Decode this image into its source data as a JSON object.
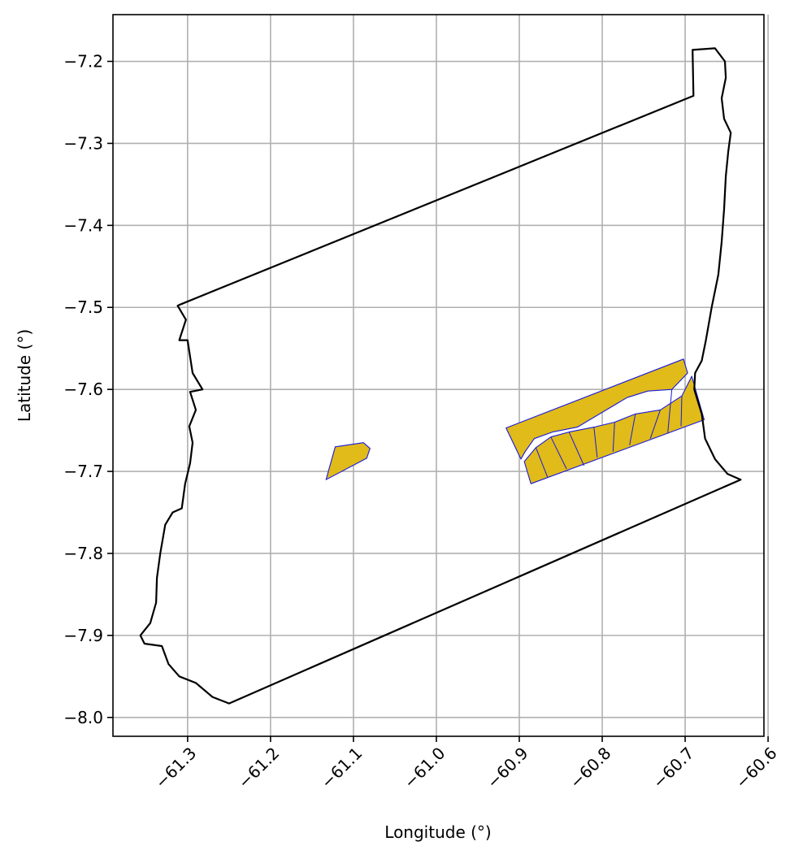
{
  "chart_data": {
    "type": "map",
    "xlabel": "Longitude (°)",
    "ylabel": "Latitude (°)",
    "xlim": [
      -61.39,
      -60.605
    ],
    "ylim": [
      -8.023,
      -7.143
    ],
    "x_ticks": [
      -61.3,
      -61.2,
      -61.1,
      -61.0,
      -60.9,
      -60.8,
      -60.7,
      -60.6
    ],
    "x_tick_labels": [
      "−61.3",
      "−61.2",
      "−61.1",
      "−61.0",
      "−60.9",
      "−60.8",
      "−60.7",
      "−60.6"
    ],
    "y_ticks": [
      -7.2,
      -7.3,
      -7.4,
      -7.5,
      -7.6,
      -7.7,
      -7.8,
      -7.9,
      -8.0
    ],
    "y_tick_labels": [
      "−7.2",
      "−7.3",
      "−7.4",
      "−7.5",
      "−7.6",
      "−7.7",
      "−7.8",
      "−7.9",
      "−8.0"
    ],
    "grid": true,
    "colors": {
      "boundary": "#000000",
      "parcel_fill": "#e0bb1a",
      "parcel_edge": "#1a1adc",
      "grid": "#b0b0b0"
    },
    "boundary": [
      [
        -61.31,
        -7.497
      ],
      [
        -60.69,
        -7.242
      ],
      [
        -60.691,
        -7.186
      ],
      [
        -60.664,
        -7.184
      ],
      [
        -60.652,
        -7.2
      ],
      [
        -60.651,
        -7.22
      ],
      [
        -60.656,
        -7.245
      ],
      [
        -60.653,
        -7.27
      ],
      [
        -60.645,
        -7.287
      ],
      [
        -60.648,
        -7.31
      ],
      [
        -60.651,
        -7.34
      ],
      [
        -60.653,
        -7.38
      ],
      [
        -60.656,
        -7.42
      ],
      [
        -60.66,
        -7.46
      ],
      [
        -60.668,
        -7.5
      ],
      [
        -60.675,
        -7.54
      ],
      [
        -60.68,
        -7.565
      ],
      [
        -60.688,
        -7.58
      ],
      [
        -60.689,
        -7.6
      ],
      [
        -60.68,
        -7.63
      ],
      [
        -60.676,
        -7.66
      ],
      [
        -60.664,
        -7.685
      ],
      [
        -60.649,
        -7.703
      ],
      [
        -60.633,
        -7.71
      ],
      [
        -61.25,
        -7.983
      ],
      [
        -61.27,
        -7.975
      ],
      [
        -61.29,
        -7.958
      ],
      [
        -61.31,
        -7.95
      ],
      [
        -61.323,
        -7.935
      ],
      [
        -61.331,
        -7.913
      ],
      [
        -61.352,
        -7.91
      ],
      [
        -61.357,
        -7.9
      ],
      [
        -61.345,
        -7.885
      ],
      [
        -61.338,
        -7.86
      ],
      [
        -61.337,
        -7.83
      ],
      [
        -61.333,
        -7.8
      ],
      [
        -61.327,
        -7.765
      ],
      [
        -61.318,
        -7.75
      ],
      [
        -61.307,
        -7.745
      ],
      [
        -61.303,
        -7.715
      ],
      [
        -61.297,
        -7.69
      ],
      [
        -61.294,
        -7.665
      ],
      [
        -61.298,
        -7.645
      ],
      [
        -61.29,
        -7.625
      ],
      [
        -61.297,
        -7.603
      ],
      [
        -61.282,
        -7.6
      ],
      [
        -61.294,
        -7.58
      ],
      [
        -61.297,
        -7.56
      ],
      [
        -61.3,
        -7.54
      ],
      [
        -61.31,
        -7.54
      ],
      [
        -61.302,
        -7.515
      ],
      [
        -61.312,
        -7.498
      ],
      [
        -61.31,
        -7.497
      ]
    ],
    "parcels": [
      {
        "name": "",
        "polygon": [
          [
            -61.133,
            -7.71
          ],
          [
            -61.122,
            -7.67
          ],
          [
            -61.088,
            -7.665
          ],
          [
            -61.08,
            -7.672
          ],
          [
            -61.084,
            -7.684
          ],
          [
            -61.133,
            -7.71
          ]
        ]
      },
      {
        "name": "",
        "polygon": [
          [
            -60.916,
            -7.647
          ],
          [
            -60.702,
            -7.563
          ],
          [
            -60.697,
            -7.58
          ],
          [
            -60.716,
            -7.6
          ],
          [
            -60.745,
            -7.602
          ],
          [
            -60.77,
            -7.61
          ],
          [
            -60.8,
            -7.628
          ],
          [
            -60.83,
            -7.646
          ],
          [
            -60.86,
            -7.652
          ],
          [
            -60.882,
            -7.66
          ],
          [
            -60.893,
            -7.676
          ],
          [
            -60.898,
            -7.685
          ],
          [
            -60.916,
            -7.647
          ]
        ]
      },
      {
        "name": "",
        "polygon": [
          [
            -60.886,
            -7.715
          ],
          [
            -60.677,
            -7.637
          ],
          [
            -60.692,
            -7.584
          ],
          [
            -60.704,
            -7.608
          ],
          [
            -60.73,
            -7.625
          ],
          [
            -60.76,
            -7.63
          ],
          [
            -60.785,
            -7.64
          ],
          [
            -60.81,
            -7.646
          ],
          [
            -60.84,
            -7.652
          ],
          [
            -60.862,
            -7.658
          ],
          [
            -60.88,
            -7.671
          ],
          [
            -60.894,
            -7.688
          ],
          [
            -60.886,
            -7.715
          ]
        ]
      }
    ],
    "parcel_dividers": [
      [
        [
          -60.88,
          -7.671
        ],
        [
          -60.866,
          -7.707
        ]
      ],
      [
        [
          -60.862,
          -7.658
        ],
        [
          -60.843,
          -7.697
        ]
      ],
      [
        [
          -60.84,
          -7.652
        ],
        [
          -60.822,
          -7.693
        ]
      ],
      [
        [
          -60.81,
          -7.646
        ],
        [
          -60.806,
          -7.683
        ]
      ],
      [
        [
          -60.785,
          -7.64
        ],
        [
          -60.787,
          -7.676
        ]
      ],
      [
        [
          -60.76,
          -7.63
        ],
        [
          -60.767,
          -7.668
        ]
      ],
      [
        [
          -60.73,
          -7.625
        ],
        [
          -60.742,
          -7.66
        ]
      ],
      [
        [
          -60.716,
          -7.6
        ],
        [
          -60.721,
          -7.654
        ]
      ],
      [
        [
          -60.704,
          -7.608
        ],
        [
          -60.705,
          -7.645
        ]
      ]
    ]
  }
}
